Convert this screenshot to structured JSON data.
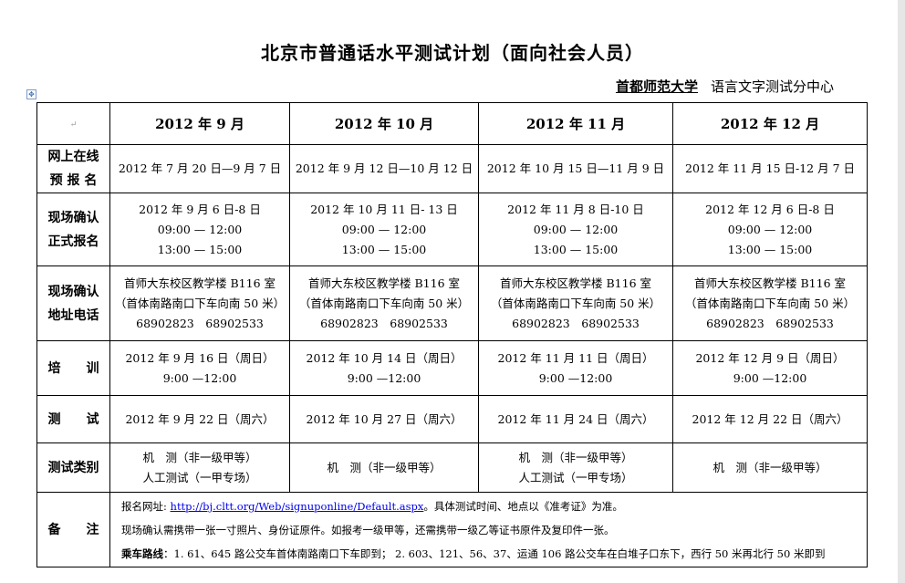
{
  "document": {
    "title": "北京市普通话水平测试计划（面向社会人员）",
    "org_name": "首都师范大学",
    "org_suffix": "语言文字测试分中心"
  },
  "table": {
    "corner": "",
    "headers": [
      "2012 年 9 月",
      "2012 年 10 月",
      "2012 年 11 月",
      "2012 年 12 月"
    ],
    "rows": [
      {
        "label": [
          "网上在线",
          "预 报 名"
        ],
        "cells": [
          [
            "2012 年 7 月 20 日—9 月 7 日"
          ],
          [
            "2012 年 9 月 12 日—10 月 12 日"
          ],
          [
            "2012 年 10 月 15 日—11 月 9 日"
          ],
          [
            "2012 年 11 月 15 日-12 月 7 日"
          ]
        ]
      },
      {
        "label": [
          "现场确认",
          "正式报名"
        ],
        "cells": [
          [
            "2012 年 9 月 6 日-8 日",
            "09:00 — 12:00",
            "13:00 — 15:00"
          ],
          [
            "2012 年 10 月 11 日- 13 日",
            "09:00 — 12:00",
            "13:00 — 15:00"
          ],
          [
            "2012 年 11 月 8 日-10 日",
            "09:00 — 12:00",
            "13:00 — 15:00"
          ],
          [
            "2012 年 12 月 6 日-8 日",
            "09:00 — 12:00",
            "13:00 — 15:00"
          ]
        ]
      },
      {
        "label": [
          "现场确认",
          "地址电话"
        ],
        "cells": [
          [
            "首师大东校区教学楼 B116 室",
            "（首体南路南口下车向南 50 米）",
            "68902823　68902533"
          ],
          [
            "首师大东校区教学楼 B116 室",
            "（首体南路南口下车向南 50 米）",
            "68902823　68902533"
          ],
          [
            "首师大东校区教学楼 B116 室",
            "（首体南路南口下车向南 50 米）",
            "68902823　68902533"
          ],
          [
            "首师大东校区教学楼 B116 室",
            "（首体南路南口下车向南 50 米）",
            "68902823　68902533"
          ]
        ]
      },
      {
        "label": [
          "培　　训"
        ],
        "cells": [
          [
            "2012 年 9 月 16 日（周日）",
            "9:00 —12:00"
          ],
          [
            "2012 年 10 月 14 日（周日）",
            "9:00 —12:00"
          ],
          [
            "2012 年 11 月 11 日（周日）",
            "9:00 —12:00"
          ],
          [
            "2012 年 12 月 9 日（周日）",
            "9:00 —12:00"
          ]
        ]
      },
      {
        "label": [
          "测　　试"
        ],
        "cells": [
          [
            "2012 年 9 月 22 日（周六）"
          ],
          [
            "2012 年 10 月 27 日（周六）"
          ],
          [
            "2012 年 11 月 24 日（周六）"
          ],
          [
            "2012 年 12 月 22 日（周六）"
          ]
        ]
      },
      {
        "label": [
          "测试类别"
        ],
        "cells": [
          [
            "机　测（非一级甲等）",
            "人工测试（一甲专场）"
          ],
          [
            "机　测（非一级甲等）"
          ],
          [
            "机　测（非一级甲等）",
            "人工测试（一甲专场）"
          ],
          [
            "机　测（非一级甲等）"
          ]
        ]
      }
    ],
    "notes": {
      "label": "备　　注",
      "line1_prefix": "报名网址: ",
      "line1_link": "http://bj.cltt.org/Web/signuponline/Default.aspx",
      "line1_suffix": "。具体测试时间、地点以《准考证》为准。",
      "line2": "现场确认需携带一张一寸照片、身份证原件。如报考一级甲等，还需携带一级乙等证书原件及复印件一张。",
      "line3_bold": "乘车路线",
      "line3": "：1. 61、645 路公交车首体南路南口下车即到； 2. 603、121、56、37、运通 106 路公交车在白堆子口东下，西行 50 米再北行 50 米即到"
    }
  }
}
